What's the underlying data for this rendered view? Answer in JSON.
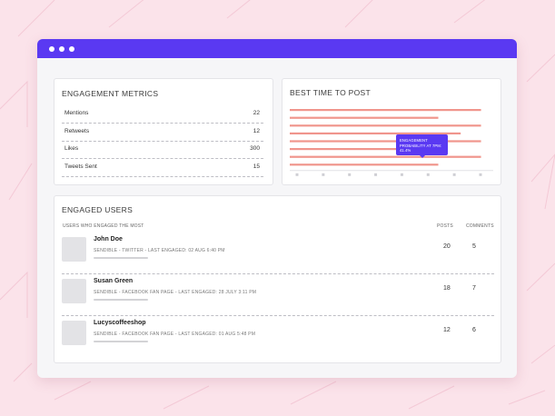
{
  "colors": {
    "accent": "#5a39f2",
    "chart_bar": "#f0958c",
    "background": "#fbe3ea"
  },
  "titlebar_icons": [
    "window-dot-icon",
    "window-dot-icon",
    "window-dot-icon"
  ],
  "engagement_metrics": {
    "title": "ENGAGEMENT METRICS",
    "rows": [
      {
        "label": "Mentions",
        "value": "22"
      },
      {
        "label": "Retweets",
        "value": "12"
      },
      {
        "label": "Likes",
        "value": "300"
      },
      {
        "label": "Tweets Sent",
        "value": "15"
      }
    ]
  },
  "best_time": {
    "title": "BEST TIME TO POST",
    "tooltip_label": "ENGAGEMENT PROBABILITY AT 7PM:",
    "tooltip_value": "41.4%"
  },
  "chart_data": {
    "type": "bar",
    "orientation": "horizontal",
    "categories": [
      "",
      "",
      "",
      "",
      "",
      "",
      "",
      ""
    ],
    "values": [
      0.94,
      0.73,
      0.94,
      0.84,
      0.94,
      0.73,
      0.94,
      0.73
    ],
    "xlim": [
      0,
      1
    ],
    "x_tick_count": 8,
    "tick_labels": "placeholder-dots",
    "grid": false,
    "annotation": {
      "text": "ENGAGEMENT PROBABILITY AT 7PM: 41.4%"
    }
  },
  "engaged_users": {
    "title": "ENGAGED USERS",
    "subtitle": "USERS WHO ENGAGED THE MOST",
    "col_posts": "POSTS",
    "col_comments": "COMMENTS",
    "users": [
      {
        "name": "John Doe",
        "meta": "SENDIBLE - TWITTER - LAST ENGAGED: 02 AUG 6:40 PM",
        "posts": "20",
        "comments": "5"
      },
      {
        "name": "Susan Green",
        "meta": "SENDIBLE - FACEBOOK FAN PAGE - LAST ENGAGED: 28 JULY 3:11 PM",
        "posts": "18",
        "comments": "7"
      },
      {
        "name": "Lucyscoffeeshop",
        "meta": "SENDIBLE - FACEBOOK FAN PAGE - LAST ENGAGED: 01 AUG 5:48 PM",
        "posts": "12",
        "comments": "6"
      }
    ]
  }
}
